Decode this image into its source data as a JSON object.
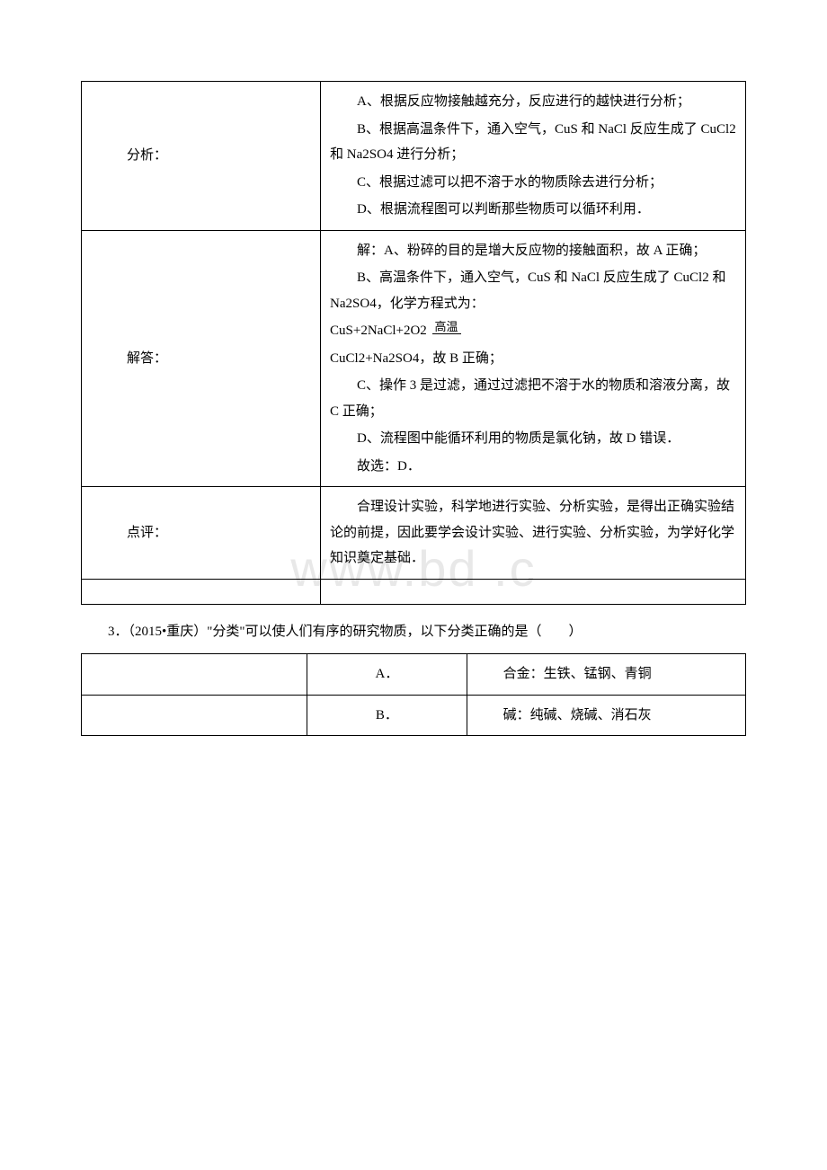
{
  "watermark": "www.bd      .c",
  "table1": {
    "rows": [
      {
        "label": "分析：",
        "paras": [
          "A、根据反应物接触越充分，反应进行的越快进行分析；",
          "B、根据高温条件下，通入空气，CuS 和 NaCl 反应生成了 CuCl2 和 Na2SO4 进行分析；",
          "C、根据过滤可以把不溶于水的物质除去进行分析；",
          "D、根据流程图可以判断那些物质可以循环利用．"
        ]
      },
      {
        "label": "解答：",
        "paras_before_eq": [
          "解：A、粉碎的目的是增大反应物的接触面积，故 A 正确；",
          "B、高温条件下，通入空气，CuS 和 NaCl 反应生成了 CuCl2 和 Na2SO4，化学方程式为："
        ],
        "eq_left": "CuS+2NaCl+2O2",
        "eq_cond": "高温",
        "eq_right_rest": "CuCl2+Na2SO4，故 B 正确；",
        "paras_after_eq": [
          "C、操作 3 是过滤，通过过滤把不溶于水的物质和溶液分离，故 C 正确；",
          "D、流程图中能循环利用的物质是氯化钠，故 D 错误．",
          "故选：D．"
        ]
      },
      {
        "label": "点评：",
        "paras": [
          "合理设计实验，科学地进行实验、分析实验，是得出正确实验结论的前提，因此要学会设计实验、进行实验、分析实验，为学好化学知识奠定基础．"
        ]
      }
    ]
  },
  "question3": "3．（2015•重庆）\"分类\"可以使人们有序的研究物质，以下分类正确的是（　　）",
  "options": [
    {
      "letter": "A．",
      "text": "合金：生铁、锰钢、青铜"
    },
    {
      "letter": "B．",
      "text": "碱：纯碱、烧碱、消石灰"
    }
  ]
}
